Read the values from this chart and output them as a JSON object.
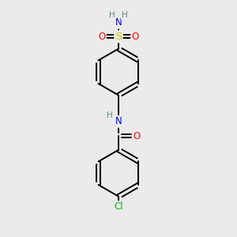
{
  "bg_color": "#ebebeb",
  "bond_color": "#000000",
  "atom_colors": {
    "N": "#0000ff",
    "O": "#ff0000",
    "S": "#cccc00",
    "Cl": "#00bb00",
    "H": "#5a8a8a",
    "C": "#000000"
  },
  "font_size": 8.5,
  "line_width": 1.4,
  "figsize": [
    3.0,
    3.0
  ],
  "dpi": 100
}
